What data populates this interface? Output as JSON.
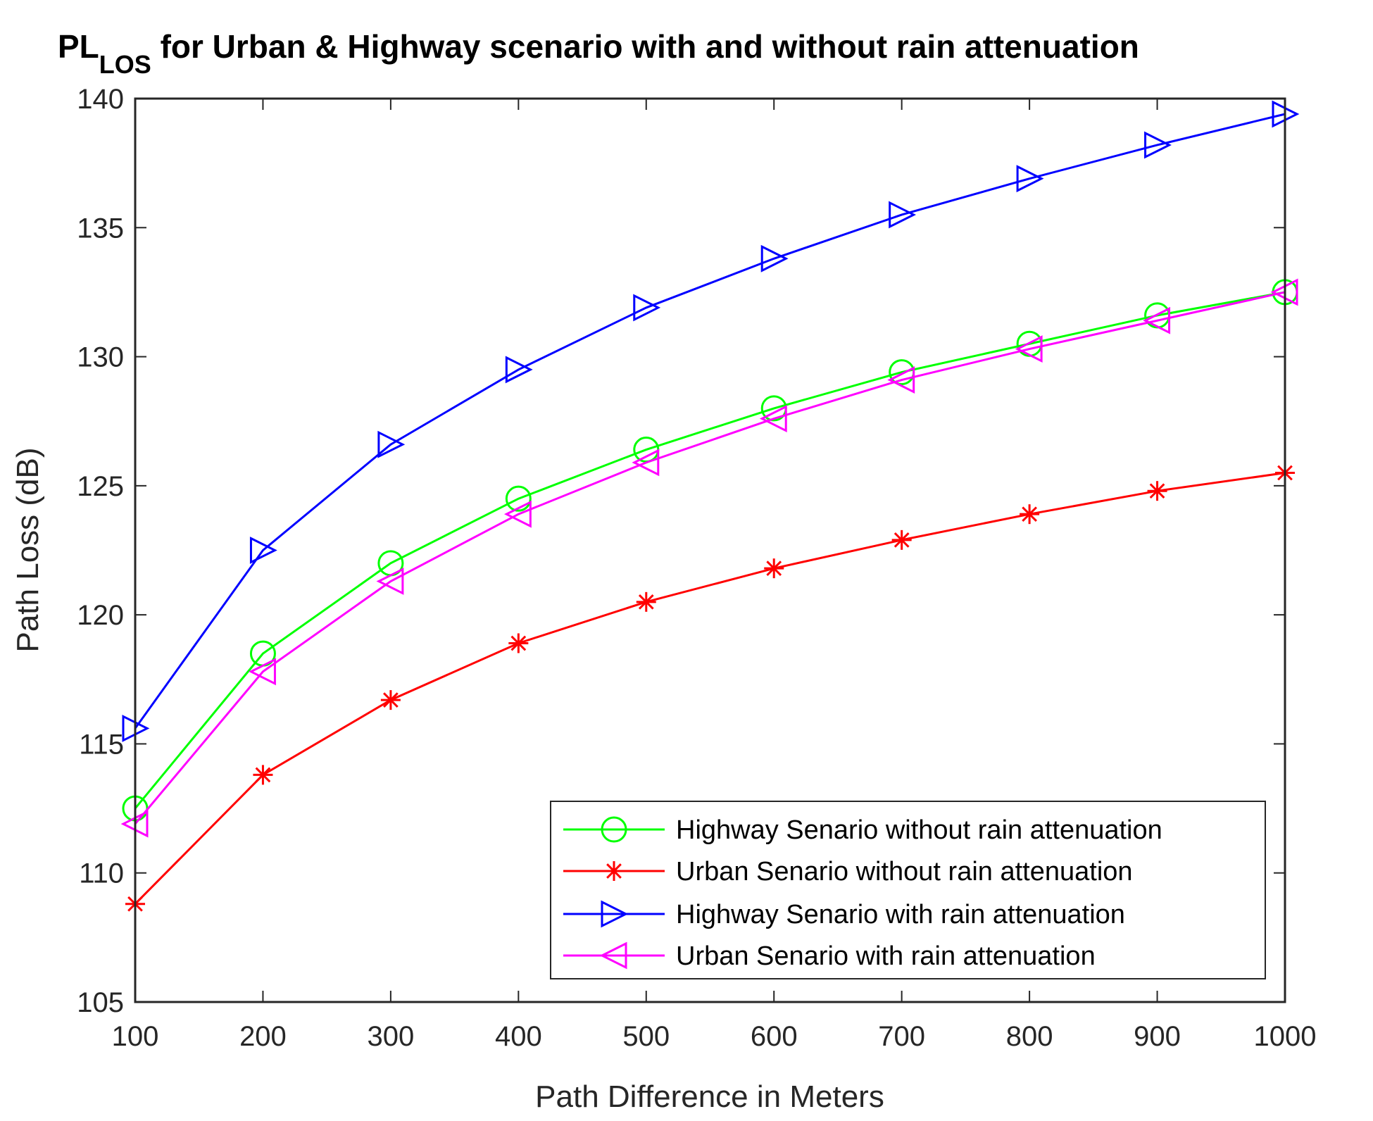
{
  "chart_data": {
    "type": "line",
    "title_main": "PL",
    "title_sub": "LOS",
    "title_rest": " for Urban & Highway scenario with and without rain attenuation",
    "xlabel": "Path Difference in Meters",
    "ylabel": "Path Loss (dB)",
    "xlim": [
      100,
      1000
    ],
    "ylim": [
      105,
      140
    ],
    "x_ticks": [
      100,
      200,
      300,
      400,
      500,
      600,
      700,
      800,
      900,
      1000
    ],
    "y_ticks": [
      105,
      110,
      115,
      120,
      125,
      130,
      135,
      140
    ],
    "x_tick_labels": [
      "100",
      "200",
      "300",
      "400",
      "500",
      "600",
      "700",
      "800",
      "900",
      "1000"
    ],
    "y_tick_labels": [
      "105",
      "110",
      "115",
      "120",
      "125",
      "130",
      "135",
      "140"
    ],
    "grid": false,
    "legend_position": "bottom-right",
    "x": [
      100,
      200,
      300,
      400,
      500,
      600,
      700,
      800,
      900,
      1000
    ],
    "series": [
      {
        "name": "Highway Senario without rain attenuation",
        "color": "#00ff00",
        "marker": "circle",
        "values": [
          112.5,
          118.5,
          122.0,
          124.5,
          126.4,
          128.0,
          129.4,
          130.5,
          131.6,
          132.5
        ]
      },
      {
        "name": "Urban Senario without rain attenuation",
        "color": "#ff0000",
        "marker": "asterisk",
        "values": [
          108.8,
          113.8,
          116.7,
          118.9,
          120.5,
          121.8,
          122.9,
          123.9,
          124.8,
          125.5
        ]
      },
      {
        "name": "Highway Senario with rain attenuation",
        "color": "#0000ff",
        "marker": "triangle-right",
        "values": [
          115.6,
          122.5,
          126.6,
          129.5,
          131.9,
          133.8,
          135.5,
          136.9,
          138.2,
          139.4
        ]
      },
      {
        "name": "Urban Senario with rain attenuation",
        "color": "#ff00ff",
        "marker": "triangle-left",
        "values": [
          111.9,
          117.8,
          121.3,
          123.9,
          125.9,
          127.6,
          129.1,
          130.3,
          131.4,
          132.5
        ]
      }
    ]
  }
}
